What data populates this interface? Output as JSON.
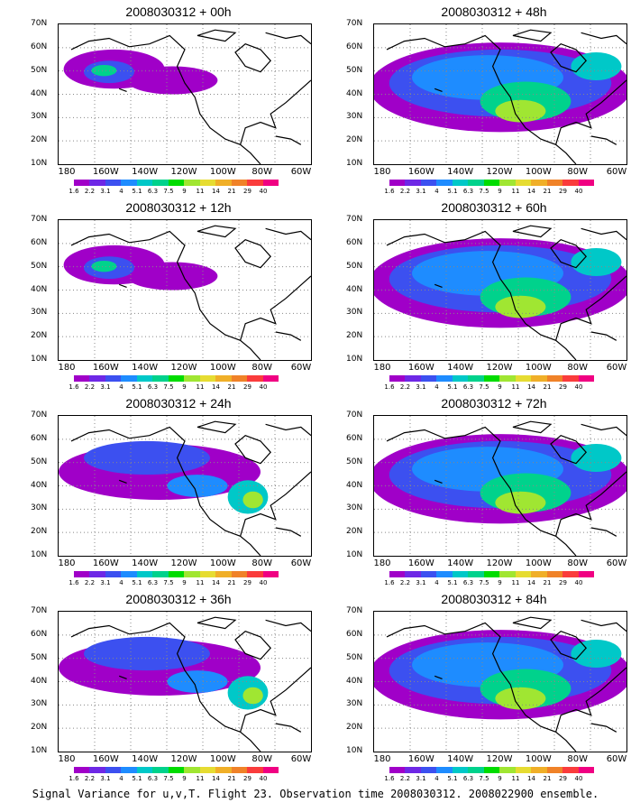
{
  "panels": [
    {
      "title": "2008030312 + 00h",
      "lead_hours": 0,
      "extent": "limited"
    },
    {
      "title": "2008030312 + 48h",
      "lead_hours": 48,
      "extent": "broad"
    },
    {
      "title": "2008030312 + 12h",
      "lead_hours": 12,
      "extent": "limited"
    },
    {
      "title": "2008030312 + 60h",
      "lead_hours": 60,
      "extent": "broad"
    },
    {
      "title": "2008030312 + 24h",
      "lead_hours": 24,
      "extent": "moderate"
    },
    {
      "title": "2008030312 + 72h",
      "lead_hours": 72,
      "extent": "broad"
    },
    {
      "title": "2008030312 + 36h",
      "lead_hours": 36,
      "extent": "moderate"
    },
    {
      "title": "2008030312 + 84h",
      "lead_hours": 84,
      "extent": "broad"
    }
  ],
  "axes": {
    "lat_labels": [
      "70N",
      "60N",
      "50N",
      "40N",
      "30N",
      "20N",
      "10N"
    ],
    "lon_labels": [
      "180",
      "160W",
      "140W",
      "120W",
      "100W",
      "80W",
      "60W"
    ]
  },
  "colorbar": {
    "labels": [
      "1.6",
      "2.2",
      "3.1",
      "4",
      "5.1",
      "6.3",
      "7.5",
      "9",
      "11",
      "14",
      "21",
      "29",
      "40"
    ],
    "colors": [
      "#ffffff",
      "#a000c8",
      "#6e28e6",
      "#3c50f0",
      "#1e8cff",
      "#00c8c8",
      "#00d28c",
      "#00dc00",
      "#a0e632",
      "#e6dc32",
      "#f0af28",
      "#f08228",
      "#fa3c3c",
      "#f00082",
      "#ffffff",
      "#ffffff"
    ]
  },
  "caption": "Signal Variance for u,v,T. Flight 23. Observation time 2008030312. 2008022900 ensemble."
}
